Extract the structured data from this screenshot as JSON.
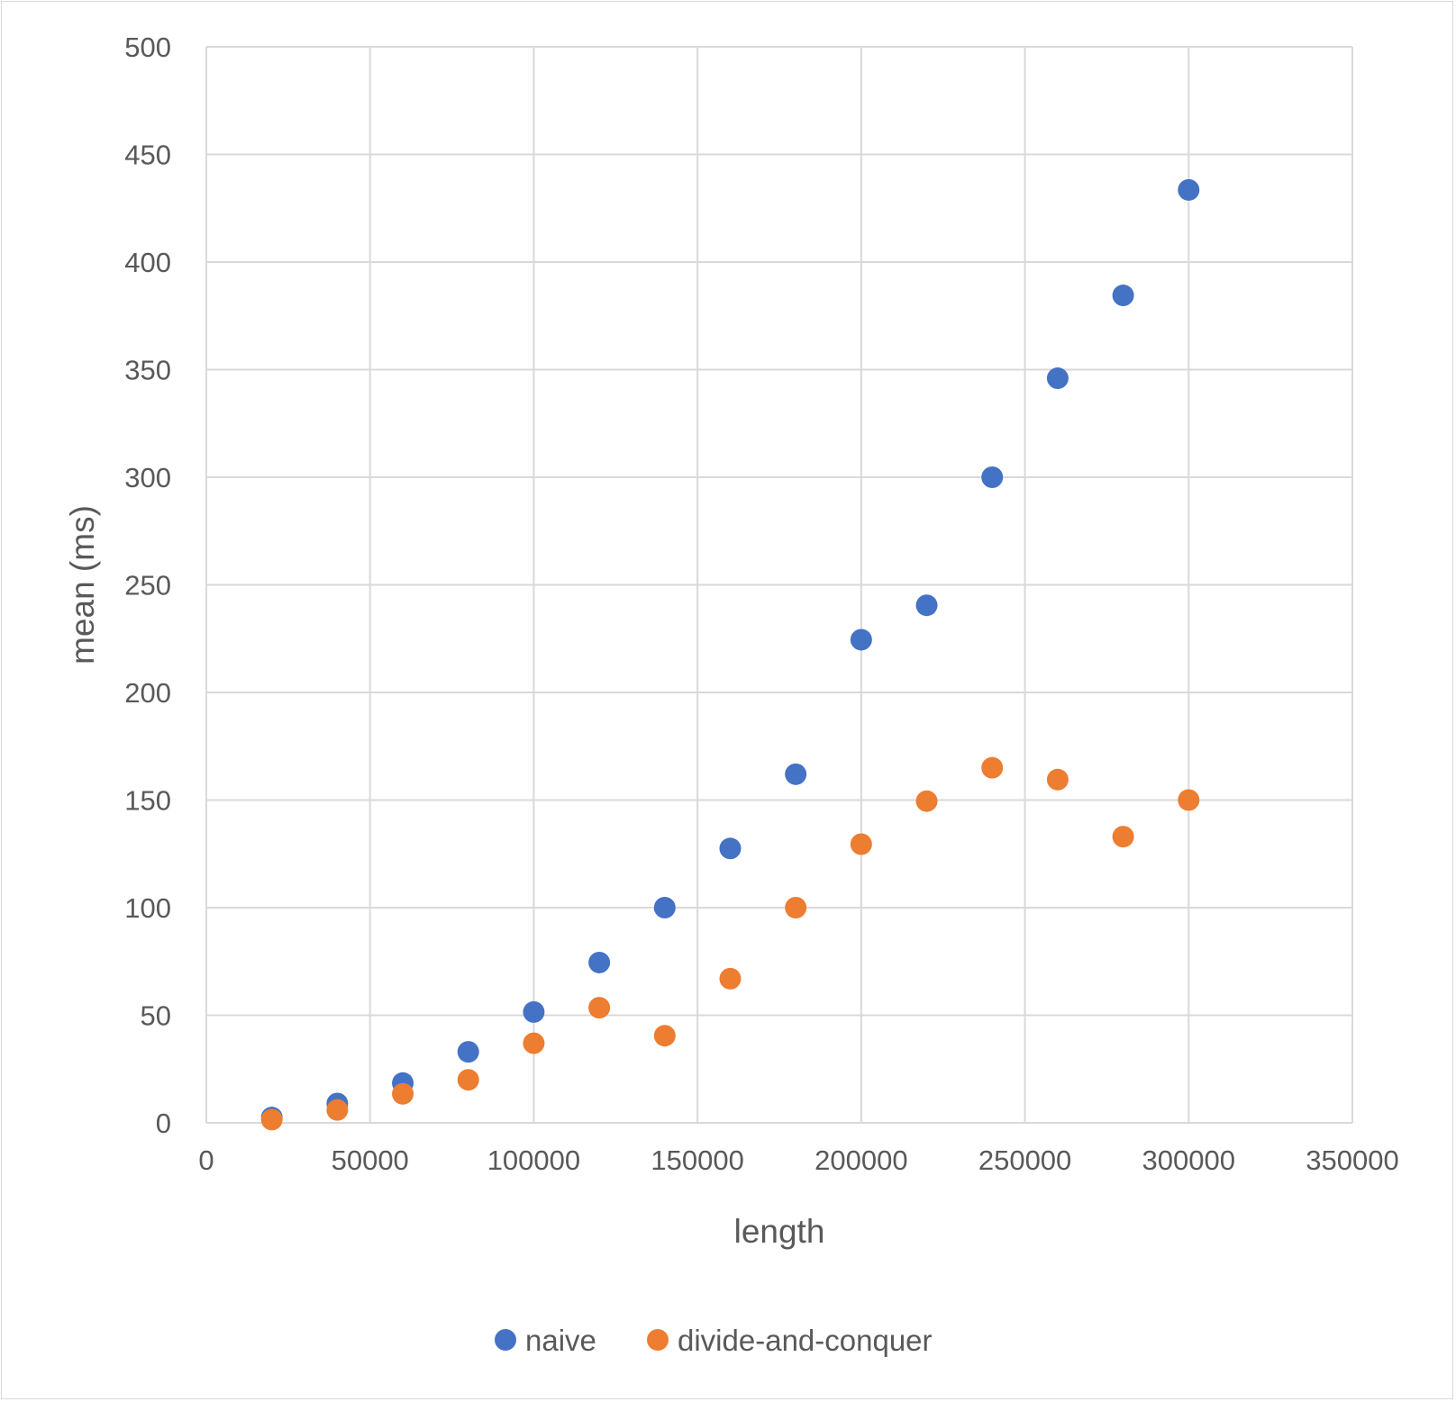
{
  "chart_data": {
    "type": "scatter",
    "title": "",
    "xlabel": "length",
    "ylabel": "mean (ms)",
    "xlim": [
      0,
      350000
    ],
    "ylim": [
      0,
      500
    ],
    "x_ticks": [
      "0",
      "50000",
      "100000",
      "150000",
      "200000",
      "250000",
      "300000",
      "350000"
    ],
    "y_ticks": [
      "0",
      "50",
      "100",
      "150",
      "200",
      "250",
      "300",
      "350",
      "400",
      "450",
      "500"
    ],
    "grid": true,
    "legend_position": "bottom",
    "x": [
      20000,
      40000,
      60000,
      80000,
      100000,
      120000,
      140000,
      160000,
      180000,
      200000,
      220000,
      240000,
      260000,
      280000,
      300000
    ],
    "series": [
      {
        "name": "naive",
        "color": "#4472c4",
        "values": [
          2.5,
          9,
          18.5,
          33,
          51.5,
          74.5,
          100,
          127.5,
          162,
          224.5,
          240.5,
          300,
          346,
          384.5,
          433.5
        ]
      },
      {
        "name": "divide-and-conquer",
        "color": "#ed7d31",
        "values": [
          1.5,
          6,
          13.5,
          20,
          37,
          53.5,
          40.5,
          67,
          100,
          129.5,
          149.5,
          165,
          159.5,
          133,
          150
        ]
      }
    ]
  }
}
